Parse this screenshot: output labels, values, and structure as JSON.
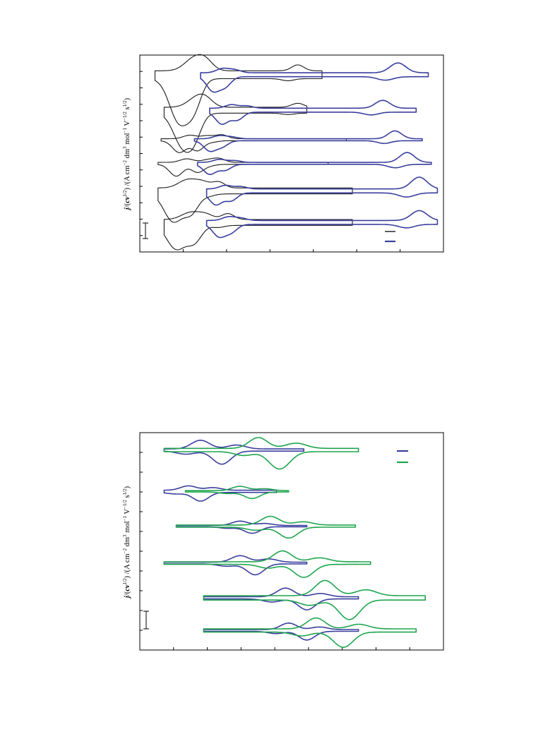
{
  "page": {
    "background": "#ffffff"
  },
  "colors": {
    "black_series": "#1a1a1a",
    "blue_series": "#3a3f9e",
    "green_series": "#1fa54f",
    "axis": "#000000"
  },
  "chart_data": [
    {
      "type": "line",
      "orientation": "rotated 90 degrees counter-clockwise on the page",
      "ylabel_parts": [
        "j",
        "/(",
        "cv",
        "1/2",
        ") /(A cm",
        "−2",
        " dm",
        "3",
        " mol",
        "−1",
        " V",
        "−1/2",
        " s",
        "1/2",
        ")"
      ],
      "xlabel": "",
      "title": "",
      "grid": false,
      "legend": {
        "placement": "bottom-right",
        "entries": [
          {
            "series": "black",
            "label": ""
          },
          {
            "series": "blue",
            "label": ""
          }
        ]
      },
      "scale_bar": {
        "label": ""
      },
      "xlim": [
        0,
        100
      ],
      "ylim": [
        0,
        100
      ],
      "ticks_x": 7,
      "ticks_y": 12,
      "traces": [
        {
          "series": "black",
          "offset": 90,
          "start": 5,
          "end": 60,
          "peaks": [
            {
              "x": 13,
              "h": -22,
              "w": 3.2
            },
            {
              "x": 18,
              "h": -12,
              "w": 2.4
            },
            {
              "x": 52,
              "h": 3,
              "w": 2
            }
          ],
          "shoulder": 4
        },
        {
          "series": "blue",
          "offset": 90,
          "start": 20,
          "end": 95,
          "peaks": [
            {
              "x": 24,
              "h": -7,
              "w": 2
            },
            {
              "x": 28,
              "h": -5,
              "w": 2
            },
            {
              "x": 85,
              "h": 5,
              "w": 2.6
            }
          ],
          "shoulder": 2
        },
        {
          "series": "black",
          "offset": 72,
          "start": 8,
          "end": 55,
          "peaks": [
            {
              "x": 14,
              "h": -16,
              "w": 3
            },
            {
              "x": 18,
              "h": -10,
              "w": 2.4
            },
            {
              "x": 52,
              "h": 2,
              "w": 2
            }
          ],
          "shoulder": 3
        },
        {
          "series": "blue",
          "offset": 72,
          "start": 23,
          "end": 91,
          "peaks": [
            {
              "x": 27,
              "h": -6,
              "w": 2
            },
            {
              "x": 32,
              "h": -4,
              "w": 2
            },
            {
              "x": 80,
              "h": 4,
              "w": 2.4
            }
          ],
          "shoulder": 2
        },
        {
          "series": "black",
          "offset": 57,
          "start": 7,
          "end": 68,
          "peaks": [
            {
              "x": 13,
              "h": -6,
              "w": 2.2
            },
            {
              "x": 19,
              "h": -5,
              "w": 2
            },
            {
              "x": 27,
              "h": 2,
              "w": 2
            }
          ],
          "shoulder": 1
        },
        {
          "series": "blue",
          "offset": 57,
          "start": 18,
          "end": 93,
          "peaks": [
            {
              "x": 23,
              "h": -5,
              "w": 2
            },
            {
              "x": 27,
              "h": -3,
              "w": 2
            },
            {
              "x": 84,
              "h": 4,
              "w": 2.2
            }
          ],
          "shoulder": 1
        },
        {
          "series": "black",
          "offset": 45,
          "start": 6,
          "end": 62,
          "peaks": [
            {
              "x": 12,
              "h": -6,
              "w": 2.2
            },
            {
              "x": 19,
              "h": -4,
              "w": 2
            },
            {
              "x": 26,
              "h": 2,
              "w": 2
            }
          ],
          "shoulder": 1
        },
        {
          "series": "blue",
          "offset": 45,
          "start": 19,
          "end": 96,
          "peaks": [
            {
              "x": 23,
              "h": -5,
              "w": 2
            },
            {
              "x": 28,
              "h": -3,
              "w": 2
            },
            {
              "x": 88,
              "h": 5,
              "w": 2.4
            }
          ],
          "shoulder": 1
        },
        {
          "series": "black",
          "offset": 31,
          "start": 6,
          "end": 70,
          "peaks": [
            {
              "x": 11,
              "h": -14,
              "w": 3
            },
            {
              "x": 17,
              "h": -9,
              "w": 2.4
            },
            {
              "x": 26,
              "h": 3,
              "w": 2
            }
          ],
          "shoulder": 3
        },
        {
          "series": "blue",
          "offset": 31,
          "start": 22,
          "end": 98,
          "peaks": [
            {
              "x": 25,
              "h": -6,
              "w": 2
            },
            {
              "x": 30,
              "h": -4,
              "w": 2
            },
            {
              "x": 92,
              "h": 6,
              "w": 2.6
            }
          ],
          "shoulder": 2
        },
        {
          "series": "black",
          "offset": 15,
          "start": 8,
          "end": 70,
          "peaks": [
            {
              "x": 12,
              "h": -12,
              "w": 3
            },
            {
              "x": 18,
              "h": -8,
              "w": 2.4
            },
            {
              "x": 29,
              "h": 3,
              "w": 2
            }
          ],
          "shoulder": 3
        },
        {
          "series": "blue",
          "offset": 15,
          "start": 22,
          "end": 98,
          "peaks": [
            {
              "x": 26,
              "h": -6,
              "w": 2
            },
            {
              "x": 30,
              "h": -4,
              "w": 2
            },
            {
              "x": 92,
              "h": 5,
              "w": 2.6
            }
          ],
          "shoulder": 2
        }
      ]
    },
    {
      "type": "line",
      "orientation": "rotated 90 degrees counter-clockwise on the page",
      "ylabel_parts": [
        "j",
        "/(",
        "cv",
        "1/2",
        ") /(A cm",
        "−2",
        " dm",
        "3",
        " mol",
        "−1",
        " V",
        "−1/2",
        " s",
        "1/2",
        ")"
      ],
      "xlabel": "",
      "title": "",
      "grid": false,
      "legend": {
        "placement": "top-right",
        "entries": [
          {
            "series": "blue",
            "label": ""
          },
          {
            "series": "green",
            "label": ""
          }
        ]
      },
      "scale_bar": {
        "label": ""
      },
      "xlim": [
        0,
        100
      ],
      "ylim": [
        0,
        100
      ],
      "ticks_x": 9,
      "ticks_y": 11,
      "traces": [
        {
          "series": "blue",
          "offset": 92,
          "start": 8,
          "end": 54,
          "peaks": [
            {
              "x": 27,
              "h": -6,
              "w": 3
            },
            {
              "x": 20,
              "h": 4,
              "w": 3
            }
          ],
          "shoulder": 1
        },
        {
          "series": "green",
          "offset": 92,
          "start": 8,
          "end": 72,
          "peaks": [
            {
              "x": 46,
              "h": -8,
              "w": 3.4
            },
            {
              "x": 39,
              "h": 5,
              "w": 3
            }
          ],
          "shoulder": 1.5
        },
        {
          "series": "blue",
          "offset": 73,
          "start": 8,
          "end": 45,
          "peaks": [
            {
              "x": 20,
              "h": -4,
              "w": 2.6
            },
            {
              "x": 16,
              "h": 2,
              "w": 2.6
            }
          ],
          "shoulder": 1
        },
        {
          "series": "green",
          "offset": 73,
          "start": 15,
          "end": 49,
          "peaks": [
            {
              "x": 37,
              "h": -3,
              "w": 2.6
            },
            {
              "x": 33,
              "h": 2,
              "w": 2.6
            }
          ],
          "shoulder": 0.6
        },
        {
          "series": "blue",
          "offset": 57,
          "start": 12,
          "end": 55,
          "peaks": [
            {
              "x": 37,
              "h": -3,
              "w": 2.6
            },
            {
              "x": 33,
              "h": 2,
              "w": 2.6
            }
          ],
          "shoulder": 0.6
        },
        {
          "series": "green",
          "offset": 57,
          "start": 12,
          "end": 71,
          "peaks": [
            {
              "x": 49,
              "h": -5,
              "w": 3
            },
            {
              "x": 43,
              "h": 4,
              "w": 3
            }
          ],
          "shoulder": 1
        },
        {
          "series": "blue",
          "offset": 40,
          "start": 8,
          "end": 55,
          "peaks": [
            {
              "x": 38,
              "h": -5,
              "w": 2.8
            },
            {
              "x": 33,
              "h": 3,
              "w": 2.8
            }
          ],
          "shoulder": 0.8
        },
        {
          "series": "green",
          "offset": 40,
          "start": 8,
          "end": 76,
          "peaks": [
            {
              "x": 54,
              "h": -6,
              "w": 3.2
            },
            {
              "x": 47,
              "h": 5,
              "w": 3
            }
          ],
          "shoulder": 1.2
        },
        {
          "series": "blue",
          "offset": 24,
          "start": 21,
          "end": 72,
          "peaks": [
            {
              "x": 55,
              "h": -5,
              "w": 2.8
            },
            {
              "x": 48,
              "h": 4,
              "w": 2.8
            }
          ],
          "shoulder": 1
        },
        {
          "series": "green",
          "offset": 24,
          "start": 21,
          "end": 94,
          "peaks": [
            {
              "x": 69,
              "h": -9,
              "w": 3.4
            },
            {
              "x": 61,
              "h": 7,
              "w": 3.2
            }
          ],
          "shoulder": 2
        },
        {
          "series": "blue",
          "offset": 9,
          "start": 21,
          "end": 72,
          "peaks": [
            {
              "x": 55,
              "h": -4,
              "w": 2.6
            },
            {
              "x": 49,
              "h": 3,
              "w": 2.6
            }
          ],
          "shoulder": 0.8
        },
        {
          "series": "green",
          "offset": 9,
          "start": 21,
          "end": 91,
          "peaks": [
            {
              "x": 67,
              "h": -7,
              "w": 3.2
            },
            {
              "x": 58,
              "h": 5,
              "w": 3
            }
          ],
          "shoulder": 1.5
        }
      ]
    }
  ]
}
